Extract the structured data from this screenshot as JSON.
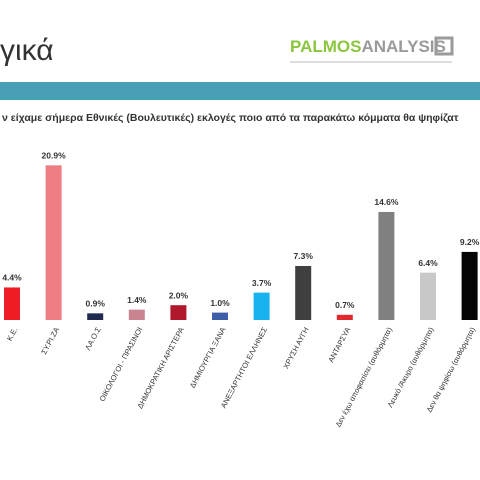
{
  "header": {
    "title": "γικά",
    "logo_main": "PALMOS",
    "logo_accent": "ANALYSIS"
  },
  "question": "ν είχαμε σήμερα Εθνικές (Βουλευτικές) εκλογές ποιο από τα παρακάτω κόμματα θα ψηφίζατ",
  "chart_data": {
    "type": "bar",
    "categories": [
      "Κ.Ε.",
      "ΣΥ.ΡΙ.ΖΑ",
      "ΛΑ.Ο.Σ",
      "ΟΙΚΟΛΟΓΟΙ - ΠΡΑΣΙΝΟΙ",
      "ΔΗΜΟΚΡΑΤΙΚΗ ΑΡΙΣΤΕΡΑ",
      "ΔΗΜΙΟΥΡΓΙΑ ΞΑΝΑ",
      "ΑΝΕΞΑΡΤΗΤΟΙ ΕΛΛΗΝΕΣ",
      "ΧΡΥΣΗ ΑΥΓΗ",
      "ΑΝΤΑΡΣΥΑ",
      "Δεν έχω αποφασίσει (αυθόρμητα)",
      "Λευκό /Άκυρο (αυθόρμητα)",
      "Δεν θα ψηφίσω (αυθόρμητα)"
    ],
    "values": [
      4.4,
      20.9,
      0.9,
      1.4,
      2.0,
      1.0,
      3.7,
      7.3,
      0.7,
      14.6,
      6.4,
      9.2
    ],
    "value_labels": [
      "4.4%",
      "20.9%",
      "0.9%",
      "1.4%",
      "2.0%",
      "1.0%",
      "3.7%",
      "7.3%",
      "0.7%",
      "14.6%",
      "6.4%",
      "9.2%"
    ],
    "colors": [
      "#ee1c25",
      "#ef7d84",
      "#1f2a4e",
      "#c9848f",
      "#b0192c",
      "#3e5fa8",
      "#19b2f0",
      "#3f3f3f",
      "#e0282e",
      "#808080",
      "#c8c8c8",
      "#050505"
    ]
  }
}
